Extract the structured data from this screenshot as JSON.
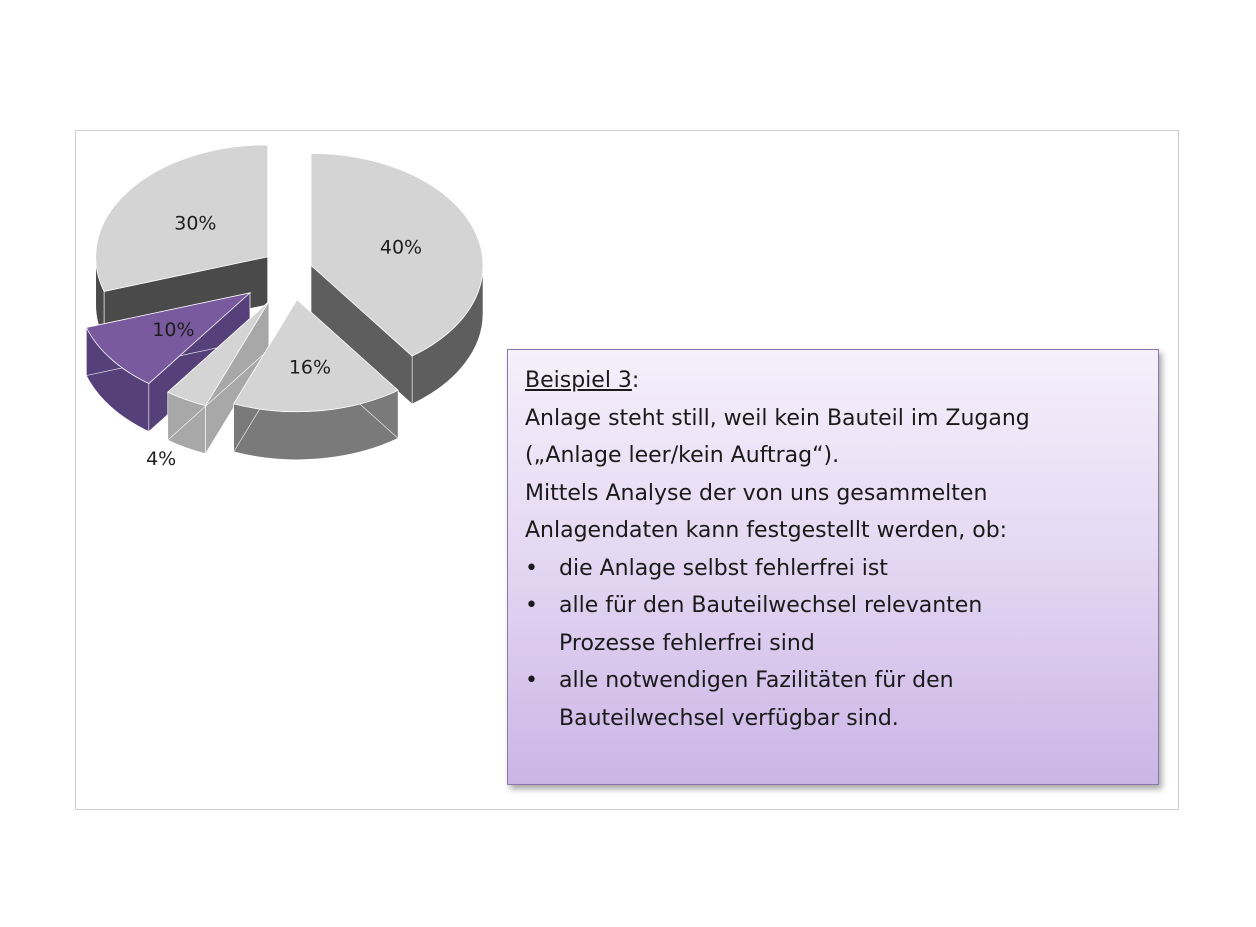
{
  "chart_data": {
    "type": "pie",
    "exploded": true,
    "three_d": true,
    "slices": [
      {
        "label": "40%",
        "value": 40,
        "color": "#d4d4d4",
        "side_color": "#5e5e5e"
      },
      {
        "label": "16%",
        "value": 16,
        "color": "#d4d4d4",
        "side_color": "#7a7a7a"
      },
      {
        "label": "4%",
        "value": 4,
        "color": "#d4d4d4",
        "side_color": "#a8a8a8"
      },
      {
        "label": "10%",
        "value": 10,
        "color": "#7a5a9e",
        "side_color": "#55407a"
      },
      {
        "label": "30%",
        "value": 30,
        "color": "#d4d4d4",
        "side_color": "#4a4a4a"
      }
    ]
  },
  "callout": {
    "heading_underlined": "Beispiel 3",
    "heading_suffix": ":",
    "lines": [
      "Anlage steht still, weil kein Bauteil im Zugang",
      "(„Anlage leer/kein Auftrag“).",
      "Mittels Analyse der von uns gesammelten",
      "Anlagendaten kann festgestellt werden, ob:"
    ],
    "bullet_symbol": "•",
    "bullets": [
      [
        "die Anlage selbst fehlerfrei ist"
      ],
      [
        "alle für den Bauteilwechsel relevanten",
        "Prozesse fehlerfrei sind"
      ],
      [
        "alle notwendigen  Fazilitäten für den",
        "Bauteilwechsel verfügbar sind."
      ]
    ]
  }
}
